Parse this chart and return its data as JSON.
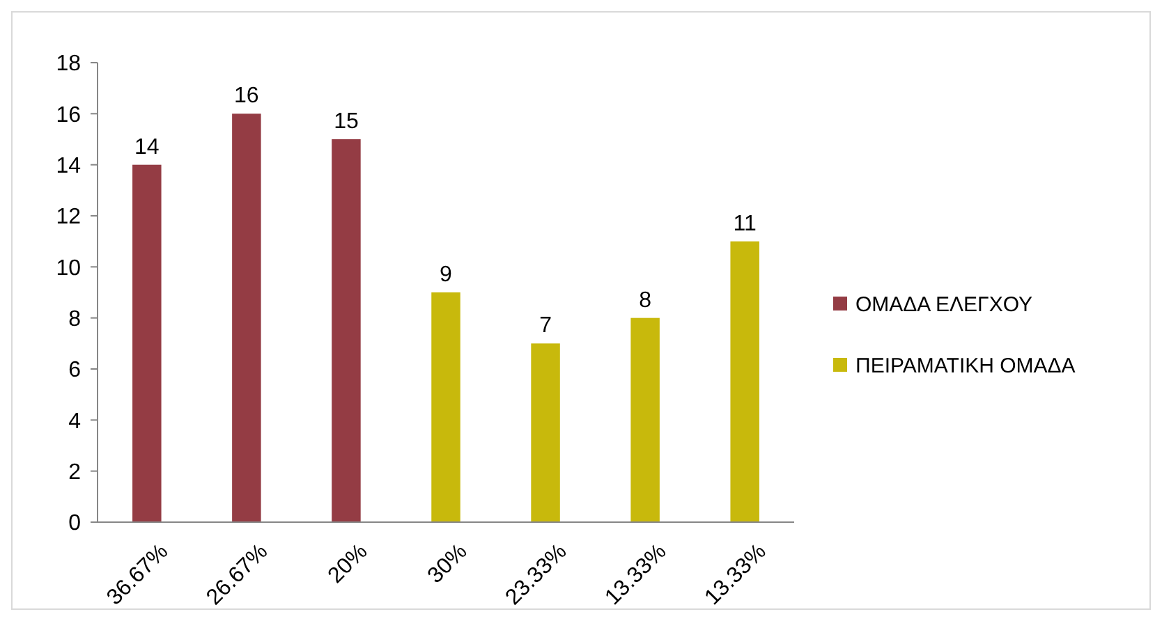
{
  "chart_data": {
    "type": "bar",
    "categories": [
      "36.67%",
      "26.67%",
      "20%",
      "30%",
      "23.33%",
      "13.33%",
      "13.33%"
    ],
    "series": [
      {
        "name": "ΟΜΑΔΑ ΕΛΕΓΧΟΥ",
        "color": "#943c44",
        "values": [
          14,
          16,
          15,
          null,
          null,
          null,
          null
        ]
      },
      {
        "name": "ΠΕΙΡΑΜΑΤΙΚΗ ΟΜΑΔΑ",
        "color": "#c8b90c",
        "values": [
          null,
          null,
          null,
          9,
          7,
          8,
          11
        ]
      }
    ],
    "ylim": [
      0,
      18
    ],
    "yticks": [
      0,
      2,
      4,
      6,
      8,
      10,
      12,
      14,
      16,
      18
    ],
    "grid": false,
    "legend": "right",
    "data_labels": true
  }
}
